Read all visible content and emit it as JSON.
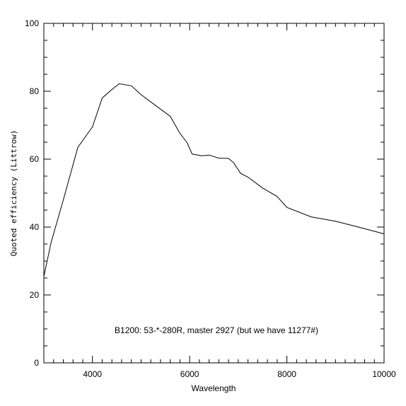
{
  "chart_data": {
    "type": "line",
    "title": "",
    "xlabel": "Wavelength",
    "ylabel": "Quoted efficiency (Littrow)",
    "xlim": [
      3000,
      10000
    ],
    "ylim": [
      0,
      100
    ],
    "xticks": [
      4000,
      6000,
      8000,
      10000
    ],
    "yticks": [
      0,
      20,
      40,
      60,
      80,
      100
    ],
    "x_minor_step": 200,
    "y_minor_step": 5,
    "grid": false,
    "legend": "none",
    "line_color": "#000000",
    "annotation": "B1200: 53-*-280R, master 2927 (but we have 11277#)",
    "series": [
      {
        "x": [
          3000,
          3150,
          3400,
          3700,
          4000,
          4200,
          4400,
          4550,
          4800,
          5000,
          5300,
          5600,
          5800,
          5950,
          6050,
          6250,
          6400,
          6600,
          6800,
          6900,
          7050,
          7200,
          7500,
          7800,
          8000,
          8500,
          9000,
          9500,
          10000
        ],
        "y": [
          25.5,
          35.5,
          48,
          63.5,
          69.5,
          78,
          80.5,
          82.2,
          81.6,
          79,
          75.8,
          72.6,
          67.6,
          64.8,
          61.5,
          61,
          61.2,
          60.3,
          60.2,
          59,
          55.8,
          54.7,
          51.5,
          49,
          45.8,
          43,
          41.7,
          39.9,
          38
        ]
      }
    ]
  }
}
